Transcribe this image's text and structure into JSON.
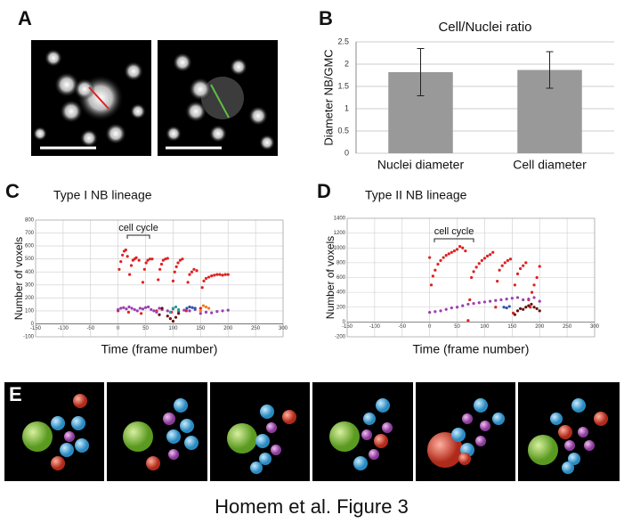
{
  "panel_labels": [
    "A",
    "B",
    "C",
    "D",
    "E"
  ],
  "caption": "Homem et al. Figure 3",
  "chart_data": [
    {
      "type": "bar",
      "title": "Cell/Nuclei ratio",
      "y_label": "Diameter NB/GMC",
      "categories": [
        "Nuclei diameter",
        "Cell diameter"
      ],
      "values": [
        1.82,
        1.87
      ],
      "errors": [
        0.53,
        0.41
      ],
      "color": "#999999",
      "ylim": [
        0,
        2.5
      ],
      "yticks": [
        0,
        0.5,
        1,
        1.5,
        2,
        2.5
      ],
      "grid": true
    },
    {
      "type": "scatter",
      "title": "Type I NB lineage",
      "x_label": "Time (frame number)",
      "y_label": "Number of voxels",
      "annotation": "cell cycle",
      "xlim": [
        -150,
        300
      ],
      "xticks": [
        -150,
        -100,
        -50,
        0,
        50,
        100,
        150,
        200,
        250,
        300
      ],
      "ylim": [
        -100,
        800
      ],
      "yticks": [
        -100,
        0,
        100,
        200,
        300,
        400,
        500,
        600,
        700,
        800
      ],
      "grid": true,
      "series": [
        {
          "color": "#e02020",
          "x": [
            0,
            2,
            5,
            8,
            11,
            14,
            17,
            19,
            21,
            24,
            27,
            30,
            33,
            38,
            42,
            45,
            48,
            51,
            54,
            58,
            62,
            70,
            73,
            76,
            79,
            82,
            86,
            90,
            97,
            100,
            103,
            106,
            109,
            113,
            117,
            124,
            127,
            130,
            134,
            138,
            143,
            150,
            153,
            156,
            160,
            165,
            170,
            175,
            180,
            185,
            190,
            195,
            200
          ],
          "values": [
            100,
            420,
            480,
            530,
            560,
            570,
            520,
            90,
            380,
            450,
            490,
            500,
            510,
            490,
            80,
            320,
            420,
            470,
            490,
            500,
            500,
            100,
            340,
            420,
            460,
            490,
            500,
            505,
            90,
            330,
            400,
            440,
            470,
            490,
            500,
            100,
            320,
            380,
            400,
            420,
            410,
            120,
            280,
            330,
            350,
            360,
            370,
            375,
            380,
            380,
            375,
            380,
            380
          ]
        },
        {
          "color": "#9b3fb0",
          "x": [
            0,
            5,
            10,
            15,
            20,
            25,
            30,
            35,
            40,
            45,
            50,
            55,
            60,
            65,
            70,
            75,
            80,
            90,
            100,
            110,
            120,
            130,
            140,
            150,
            160,
            170,
            180,
            190,
            200
          ],
          "values": [
            110,
            120,
            125,
            115,
            130,
            120,
            110,
            100,
            120,
            115,
            125,
            130,
            110,
            100,
            90,
            120,
            110,
            100,
            115,
            95,
            105,
            100,
            110,
            80,
            90,
            85,
            95,
            100,
            105
          ]
        },
        {
          "color": "#2a9a9a",
          "x": [
            95,
            100,
            105,
            110
          ],
          "values": [
            90,
            120,
            130,
            110
          ]
        },
        {
          "color": "#6a1010",
          "x": [
            75,
            80,
            90,
            95,
            100,
            105,
            110
          ],
          "values": [
            70,
            120,
            60,
            40,
            20,
            50,
            80
          ]
        },
        {
          "color": "#3355aa",
          "x": [
            125,
            130,
            135,
            140
          ],
          "values": [
            120,
            130,
            125,
            120
          ]
        },
        {
          "color": "#f08020",
          "x": [
            150,
            155,
            160,
            165
          ],
          "values": [
            100,
            140,
            130,
            120
          ]
        }
      ]
    },
    {
      "type": "scatter",
      "title": "Type II NB lineage",
      "x_label": "Time (frame number)",
      "y_label": "Number of voxels",
      "annotation": "cell cycle",
      "xlim": [
        -150,
        300
      ],
      "xticks": [
        -150,
        -100,
        -50,
        0,
        50,
        100,
        150,
        200,
        250,
        300
      ],
      "ylim": [
        -200,
        1400
      ],
      "yticks": [
        -200,
        0,
        200,
        400,
        600,
        800,
        1000,
        1200,
        1400
      ],
      "grid": true,
      "series": [
        {
          "color": "#e02020",
          "x": [
            0,
            3,
            6,
            10,
            15,
            20,
            25,
            30,
            35,
            40,
            45,
            50,
            55,
            60,
            65,
            70,
            73,
            76,
            80,
            85,
            90,
            95,
            100,
            105,
            110,
            115,
            120,
            123,
            127,
            132,
            137,
            142,
            147,
            152,
            155,
            160,
            165,
            170,
            175,
            180,
            183,
            186,
            190,
            195,
            200
          ],
          "values": [
            870,
            500,
            620,
            700,
            780,
            830,
            870,
            900,
            920,
            940,
            960,
            980,
            1020,
            1000,
            960,
            20,
            300,
            600,
            680,
            740,
            790,
            830,
            860,
            890,
            910,
            940,
            200,
            550,
            700,
            760,
            800,
            830,
            850,
            120,
            500,
            650,
            720,
            760,
            800,
            300,
            200,
            400,
            500,
            600,
            750
          ]
        },
        {
          "color": "#9b3fb0",
          "x": [
            0,
            10,
            20,
            30,
            40,
            50,
            60,
            70,
            80,
            90,
            100,
            110,
            120,
            130,
            140,
            150,
            160,
            170,
            180,
            190,
            200
          ],
          "values": [
            130,
            140,
            150,
            170,
            190,
            200,
            220,
            240,
            250,
            260,
            270,
            280,
            290,
            300,
            310,
            320,
            330,
            300,
            310,
            330,
            280
          ]
        },
        {
          "color": "#6a1010",
          "x": [
            155,
            160,
            165,
            170,
            175,
            180,
            185,
            190,
            195,
            200
          ],
          "values": [
            100,
            150,
            180,
            170,
            200,
            220,
            240,
            200,
            180,
            150
          ]
        },
        {
          "color": "#3355aa",
          "x": [
            135,
            140,
            145
          ],
          "values": [
            200,
            190,
            210
          ]
        }
      ]
    }
  ]
}
